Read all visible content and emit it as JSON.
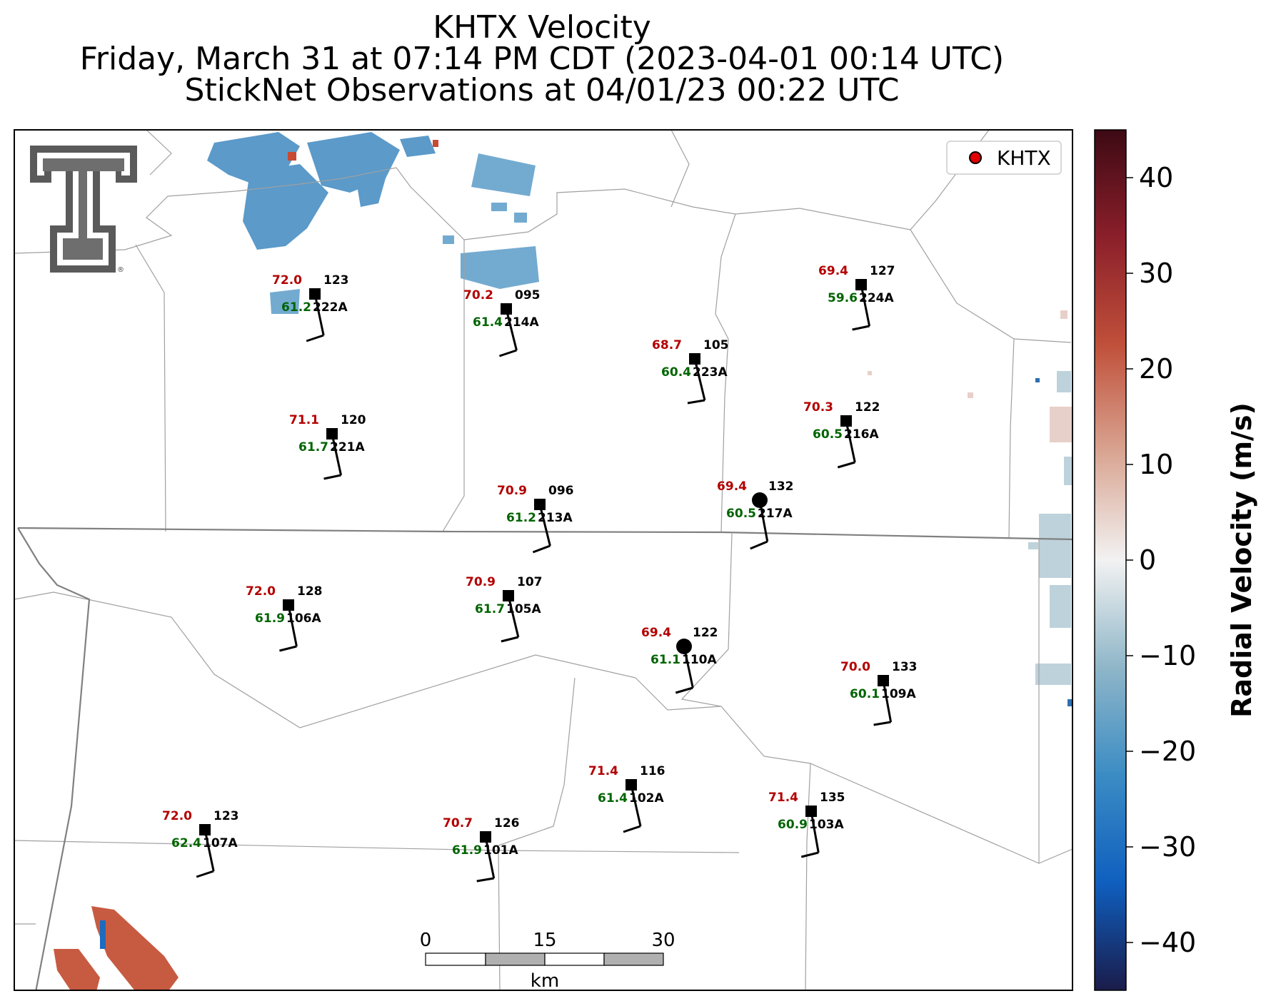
{
  "title": {
    "line1": "KHTX Velocity",
    "line2": "Friday, March 31 at 07:14 PM CDT (2023-04-01 00:14 UTC)",
    "line3": "StickNet Observations at 04/01/23 00:22 UTC"
  },
  "legend": {
    "label": "KHTX",
    "marker_color": "#e00000"
  },
  "colorbar": {
    "label": "Radial Velocity (m/s)",
    "ticks": [
      "40",
      "30",
      "20",
      "10",
      "0",
      "−10",
      "−20",
      "−30",
      "−40"
    ],
    "range": [
      -45,
      45
    ],
    "colors": [
      "#1a1c4a",
      "#0f5fbf",
      "#3b8cc4",
      "#8fb6c8",
      "#f2f2f2",
      "#d9a592",
      "#c0503a",
      "#8b1f2a",
      "#3d0a14"
    ]
  },
  "scalebar": {
    "ticks": [
      "0",
      "15",
      "30"
    ],
    "unit": "km"
  },
  "stations": [
    {
      "id": "222A",
      "temp": "72.0",
      "dew": "61.2",
      "dir": "123",
      "marker": "square"
    },
    {
      "id": "214A",
      "temp": "70.2",
      "dew": "61.4",
      "dir": "095",
      "marker": "square"
    },
    {
      "id": "224A",
      "temp": "69.4",
      "dew": "59.6",
      "dir": "127",
      "marker": "square"
    },
    {
      "id": "223A",
      "temp": "68.7",
      "dew": "60.4",
      "dir": "105",
      "marker": "square"
    },
    {
      "id": "221A",
      "temp": "71.1",
      "dew": "61.7",
      "dir": "120",
      "marker": "square"
    },
    {
      "id": "216A",
      "temp": "70.3",
      "dew": "60.5",
      "dir": "122",
      "marker": "square"
    },
    {
      "id": "213A",
      "temp": "70.9",
      "dew": "61.2",
      "dir": "096",
      "marker": "square"
    },
    {
      "id": "217A",
      "temp": "69.4",
      "dew": "60.5",
      "dir": "132",
      "marker": "circle"
    },
    {
      "id": "106A",
      "temp": "72.0",
      "dew": "61.9",
      "dir": "128",
      "marker": "square"
    },
    {
      "id": "105A",
      "temp": "70.9",
      "dew": "61.7",
      "dir": "107",
      "marker": "square"
    },
    {
      "id": "110A",
      "temp": "69.4",
      "dew": "61.1",
      "dir": "122",
      "marker": "circle"
    },
    {
      "id": "109A",
      "temp": "70.0",
      "dew": "60.1",
      "dir": "133",
      "marker": "square"
    },
    {
      "id": "102A",
      "temp": "71.4",
      "dew": "61.4",
      "dir": "116",
      "marker": "square"
    },
    {
      "id": "103A",
      "temp": "71.4",
      "dew": "60.9",
      "dir": "135",
      "marker": "square"
    },
    {
      "id": "107A",
      "temp": "72.0",
      "dew": "62.4",
      "dir": "123",
      "marker": "square"
    },
    {
      "id": "101A",
      "temp": "70.7",
      "dew": "61.9",
      "dir": "126",
      "marker": "square"
    }
  ]
}
